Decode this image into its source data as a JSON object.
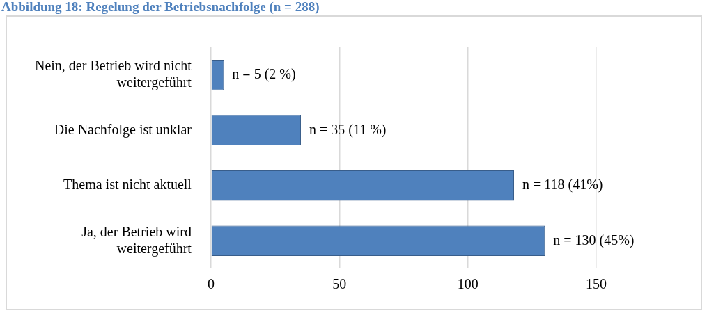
{
  "chart_data": {
    "type": "bar",
    "orientation": "horizontal",
    "title": "Abbildung 18: Regelung der Betriebsnachfolge (n = 288)",
    "categories": [
      "Nein, der Betrieb wird nicht weitergeführt",
      "Die Nachfolge ist unklar",
      "Thema ist nicht aktuell",
      "Ja, der Betrieb wird weitergeführt"
    ],
    "values": [
      5,
      35,
      118,
      130
    ],
    "color": "#4f81bd",
    "value_labels": [
      "n = 5 (2 %)",
      "n = 35 (11 %)",
      "n = 118 (41%)",
      "n = 130 (45%)"
    ],
    "xlim": [
      0,
      150
    ],
    "xticks": [
      0,
      50,
      100,
      150
    ],
    "grid": "x",
    "legend": false
  }
}
